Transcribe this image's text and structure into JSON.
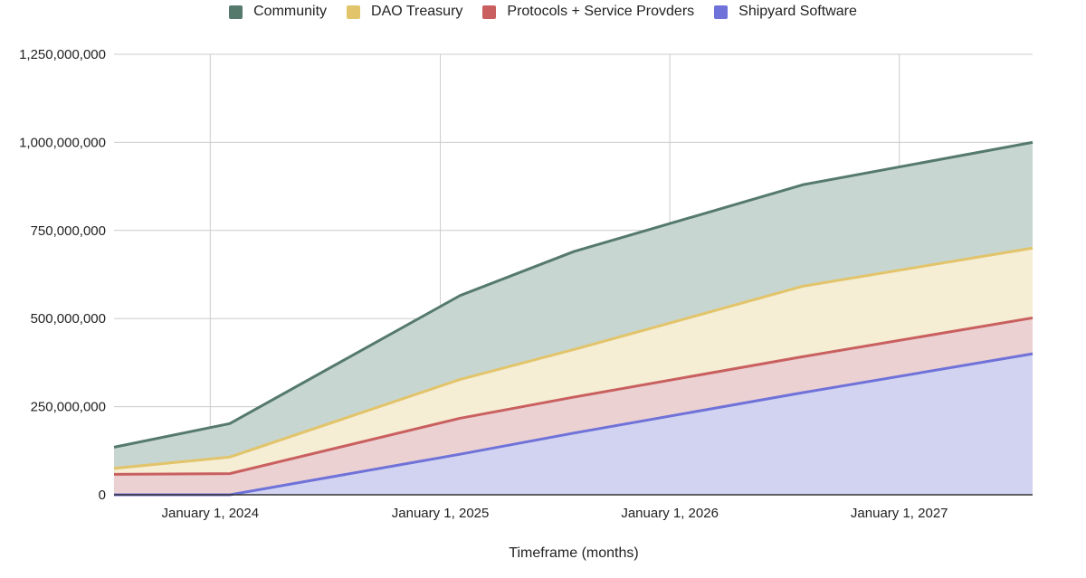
{
  "chart_data": {
    "type": "area",
    "stacked": true,
    "title": "",
    "xlabel": "Timeframe (months)",
    "ylabel": "",
    "x_dates": [
      "2023-08-01",
      "2024-02-01",
      "2025-02-01",
      "2025-08-01",
      "2026-08-01",
      "2027-08-01"
    ],
    "ylim": [
      0,
      1250000000
    ],
    "y_ticks": [
      {
        "value": 0,
        "label": "0"
      },
      {
        "value": 250000000,
        "label": "250,000,000"
      },
      {
        "value": 500000000,
        "label": "500,000,000"
      },
      {
        "value": 750000000,
        "label": "750,000,000"
      },
      {
        "value": 1000000000,
        "label": "1,000,000,000"
      },
      {
        "value": 1250000000,
        "label": "1,250,000,000"
      }
    ],
    "x_ticks": [
      {
        "date": "2024-01-01",
        "label": "January 1, 2024"
      },
      {
        "date": "2025-01-01",
        "label": "January 1, 2025"
      },
      {
        "date": "2026-01-01",
        "label": "January 1, 2026"
      },
      {
        "date": "2027-01-01",
        "label": "January 1, 2027"
      }
    ],
    "xlim": [
      "2023-08-01",
      "2027-08-01"
    ],
    "grid": true,
    "legend_position": "top",
    "series": [
      {
        "name": "Shipyard Software",
        "color": "#6e72d9",
        "fill": "#d2d3f0",
        "values": [
          0,
          0,
          115000000,
          175000000,
          290000000,
          400000000
        ]
      },
      {
        "name": "Protocols + Service Provders",
        "color": "#c95f5f",
        "fill": "#ecd1d2",
        "values": [
          58000000,
          60000000,
          102000000,
          102000000,
          102000000,
          102000000
        ]
      },
      {
        "name": "DAO Treasury",
        "color": "#e2c46a",
        "fill": "#f5edd4",
        "values": [
          17000000,
          47000000,
          110000000,
          135000000,
          200000000,
          198000000
        ]
      },
      {
        "name": "Community",
        "color": "#557a6c",
        "fill": "#c8d6d1",
        "values": [
          60000000,
          95000000,
          238000000,
          278000000,
          288000000,
          300000000
        ]
      }
    ]
  }
}
